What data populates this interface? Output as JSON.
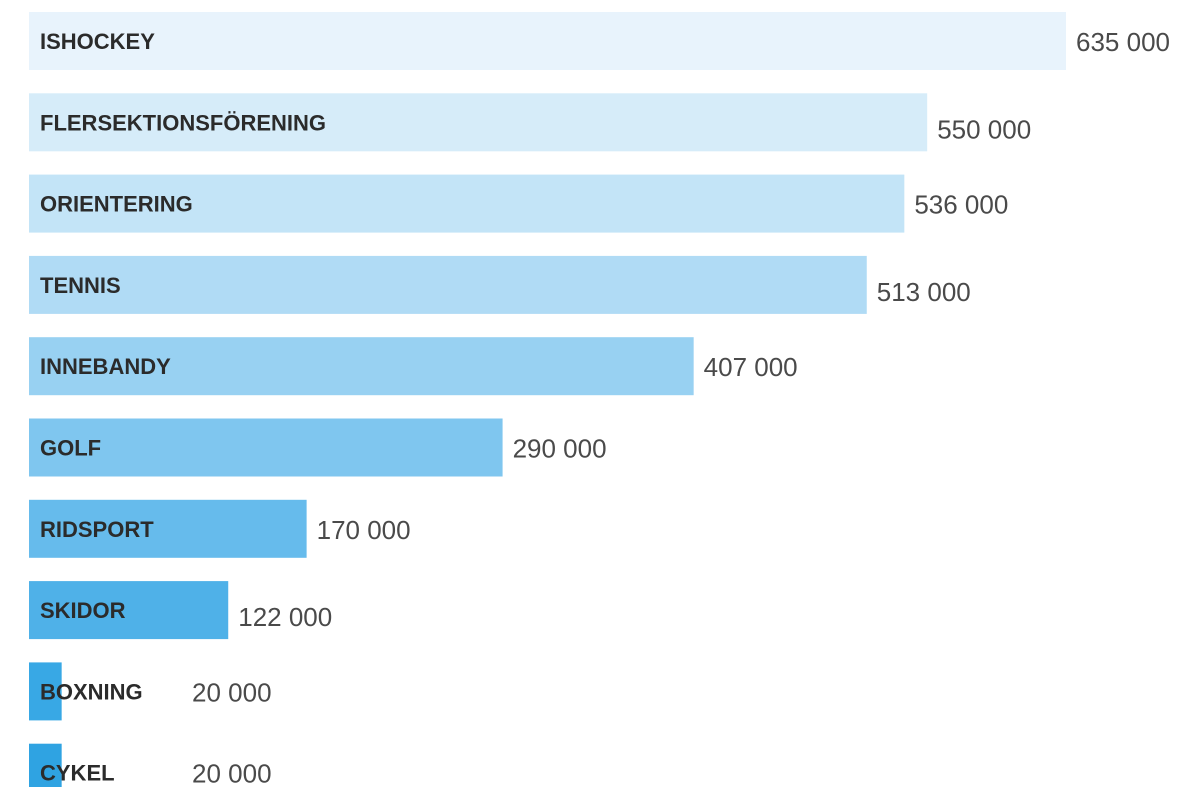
{
  "chart_data": {
    "type": "bar",
    "orientation": "horizontal",
    "title": "",
    "xlabel": "",
    "ylabel": "",
    "grid": false,
    "legend": "none",
    "categories": [
      "ISHOCKEY",
      "FLERSEKTIONSFÖRENING",
      "ORIENTERING",
      "TENNIS",
      "INNEBANDY",
      "GOLF",
      "RIDSPORT",
      "SKIDOR",
      "BOXNING",
      "CYKEL"
    ],
    "values": [
      635000,
      550000,
      536000,
      513000,
      407000,
      290000,
      170000,
      122000,
      20000,
      20000
    ],
    "value_labels": [
      "635 000",
      "550 000",
      "536 000",
      "513 000",
      "407 000",
      "290 000",
      "170 000",
      "122 000",
      "20 000",
      "20 000"
    ],
    "xlim": [
      0,
      635000
    ],
    "colors": [
      "#e8f3fc",
      "#d6ecf9",
      "#c3e4f7",
      "#b0dbf5",
      "#98d1f2",
      "#7fc6ef",
      "#66bbec",
      "#4fb1e8",
      "#38a8e5",
      "#2fa3e2"
    ]
  }
}
